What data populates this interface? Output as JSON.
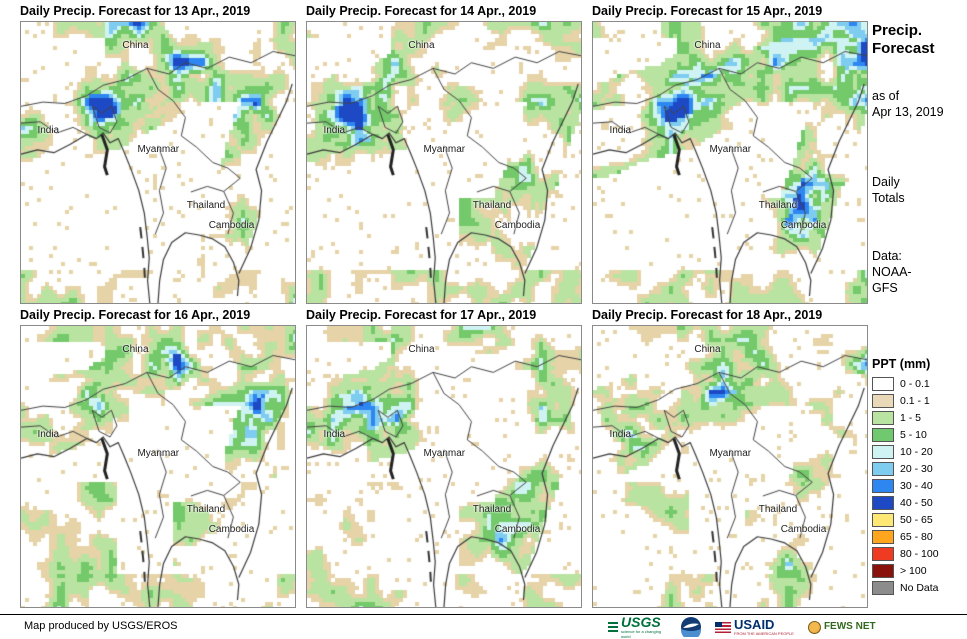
{
  "panels": [
    {
      "title": "Daily Precip. Forecast for 13 Apr., 2019"
    },
    {
      "title": "Daily Precip. Forecast for 14 Apr., 2019"
    },
    {
      "title": "Daily Precip. Forecast for 15 Apr., 2019"
    },
    {
      "title": "Daily Precip. Forecast for 16 Apr., 2019"
    },
    {
      "title": "Daily Precip. Forecast for 17 Apr., 2019"
    },
    {
      "title": "Daily Precip. Forecast for 18 Apr., 2019"
    }
  ],
  "map_labels": {
    "china": "China",
    "india": "India",
    "myanmar": "Myanmar",
    "thailand": "Thailand",
    "cambodia": "Cambodia"
  },
  "sidebar": {
    "title_l1": "Precip.",
    "title_l2": "Forecast",
    "asof_l1": "as of",
    "asof_l2": "Apr 13, 2019",
    "totals_l1": "Daily",
    "totals_l2": "Totals",
    "data_l1": "Data:",
    "data_l2": "NOAA-",
    "data_l3": "GFS",
    "legend_title": "PPT (mm)",
    "legend": [
      {
        "label": "0 - 0.1",
        "color": "#FFFFFF"
      },
      {
        "label": "0.1 - 1",
        "color": "#E9D9B8"
      },
      {
        "label": "1 - 5",
        "color": "#B9E3A0"
      },
      {
        "label": "5 - 10",
        "color": "#70C96E"
      },
      {
        "label": "10 - 20",
        "color": "#CFF3F2"
      },
      {
        "label": "20 - 30",
        "color": "#7ECCF0"
      },
      {
        "label": "30 - 40",
        "color": "#2E86F0"
      },
      {
        "label": "40 - 50",
        "color": "#1D49C4"
      },
      {
        "label": "50 - 65",
        "color": "#FFE873"
      },
      {
        "label": "65 - 80",
        "color": "#FFA51E"
      },
      {
        "label": "80 - 100",
        "color": "#EE3B22"
      },
      {
        "label": "> 100",
        "color": "#8A120C"
      },
      {
        "label": "No Data",
        "color": "#8C8C8C"
      }
    ]
  },
  "footer": {
    "credit": "Map produced by USGS/EROS",
    "usgs_text": "USGS",
    "usgs_tagline": "science for a changing world",
    "usaid_text": "USAID",
    "usaid_tagline": "FROM THE AMERICAN PEOPLE",
    "fewsnet_text": "FEWS NET"
  }
}
